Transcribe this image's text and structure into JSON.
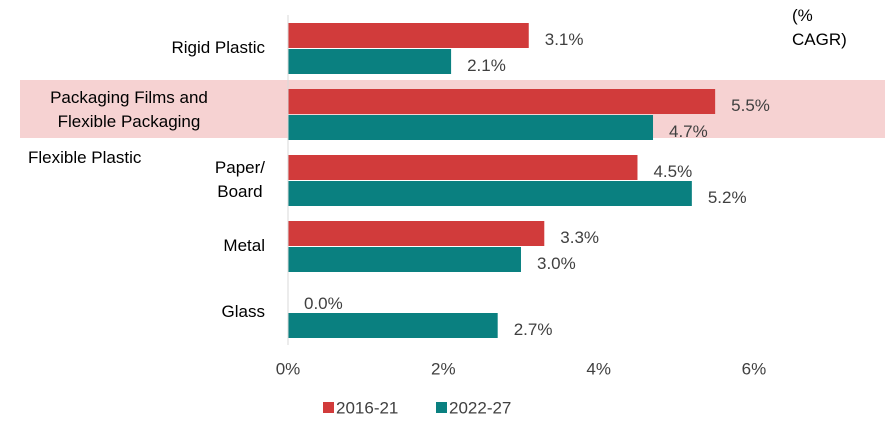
{
  "chart_data": {
    "type": "bar",
    "orientation": "horizontal",
    "categories": [
      "Rigid Plastic",
      "Flexible Plastic",
      "Paper/\nBoard",
      "Metal",
      "Glass"
    ],
    "series": [
      {
        "name": "2016-21",
        "color": "#d13b3b",
        "values": [
          3.1,
          5.5,
          4.5,
          3.3,
          0.0
        ],
        "value_labels": [
          "3.1%",
          "5.5%",
          "4.5%",
          "3.3%",
          "0.0%"
        ]
      },
      {
        "name": "2022-27",
        "color": "#0a8080",
        "values": [
          2.1,
          4.7,
          5.2,
          3.0,
          2.7
        ],
        "value_labels": [
          "2.1%",
          "4.7%",
          "5.2%",
          "3.0%",
          "2.7%"
        ]
      }
    ],
    "xlim": [
      0,
      7.7
    ],
    "xticks": [
      {
        "value": 0,
        "label": "0%"
      },
      {
        "value": 2,
        "label": "2%"
      },
      {
        "value": 4,
        "label": "4%"
      },
      {
        "value": 6,
        "label": "6%"
      }
    ],
    "annotations": [
      "(%\nCAGR)",
      "Packaging Films and\nFlexible Packaging"
    ],
    "highlight_color": "#f6d2d2",
    "legend": "bottom"
  }
}
